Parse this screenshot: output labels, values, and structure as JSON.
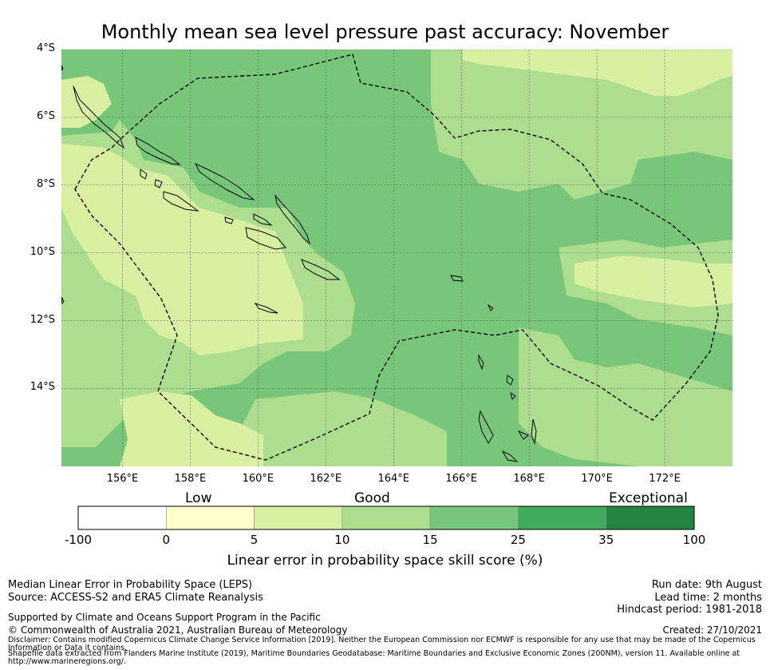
{
  "title": "Monthly mean sea level pressure past accuracy: November",
  "map": {
    "lat_ticks": [
      {
        "label": "4°S",
        "lat": -4
      },
      {
        "label": "6°S",
        "lat": -6
      },
      {
        "label": "8°S",
        "lat": -8
      },
      {
        "label": "10°S",
        "lat": -10
      },
      {
        "label": "12°S",
        "lat": -12
      },
      {
        "label": "14°S",
        "lat": -14
      }
    ],
    "lon_ticks": [
      {
        "label": "156°E",
        "lon": 156
      },
      {
        "label": "158°E",
        "lon": 158
      },
      {
        "label": "160°E",
        "lon": 160
      },
      {
        "label": "162°E",
        "lon": 162
      },
      {
        "label": "164°E",
        "lon": 164
      },
      {
        "label": "166°E",
        "lon": 166
      },
      {
        "label": "168°E",
        "lon": 168
      },
      {
        "label": "170°E",
        "lon": 170
      },
      {
        "label": "172°E",
        "lon": 172
      }
    ],
    "extent": {
      "lon_min": 154.2,
      "lon_max": 174.0,
      "lat_max": -4.0,
      "lat_min": -16.3
    },
    "grid": true,
    "colors": {
      "c5_10": "#d9f0a3",
      "c10_15": "#addd8e",
      "c15_25": "#78c679"
    }
  },
  "colorbar": {
    "categories": {
      "low": "Low",
      "good": "Good",
      "exceptional": "Exceptional"
    },
    "bins": [
      {
        "color": "#ffffff"
      },
      {
        "color": "#ffffcc"
      },
      {
        "color": "#d9f0a3"
      },
      {
        "color": "#addd8e"
      },
      {
        "color": "#78c679"
      },
      {
        "color": "#41ab5d"
      },
      {
        "color": "#238443"
      }
    ],
    "ticks": [
      "-100",
      "0",
      "5",
      "10",
      "15",
      "25",
      "35",
      "100"
    ],
    "axis_label": "Linear error in probability space skill score (%)"
  },
  "footer": {
    "left_line1": "Median Linear Error in Probability Space (LEPS)",
    "left_line2": "Source: ACCESS-S2 and ERA5 Climate Reanalysis",
    "supported": "Supported by Climate and Oceans Support Program in the Pacific",
    "copyright": "© Commonwealth of Australia 2021, Australian Bureau of Meteorology",
    "disclaimer1": "Disclaimer: Contains modified Copernicus Climate Change Service Information [2019]. Neither the European Commission nor ECMWF is responsible for any use that may be made of the Copernicus",
    "disclaimer2": "Information or Data it contains.",
    "shapefile1": "Shapefile data extracted from Flanders Marine Institute (2019), Maritime Boundaries Geodatabase: Maritime Boundaries and Exclusive Economic Zones (200NM), version 11. Available online at",
    "shapefile2": "http://www.marineregions.org/.",
    "run_date": "Run date: 9th August",
    "lead_time": "Lead time: 2 months",
    "hindcast": "Hindcast period: 1981-2018",
    "created": "Created: 27/10/2021"
  }
}
